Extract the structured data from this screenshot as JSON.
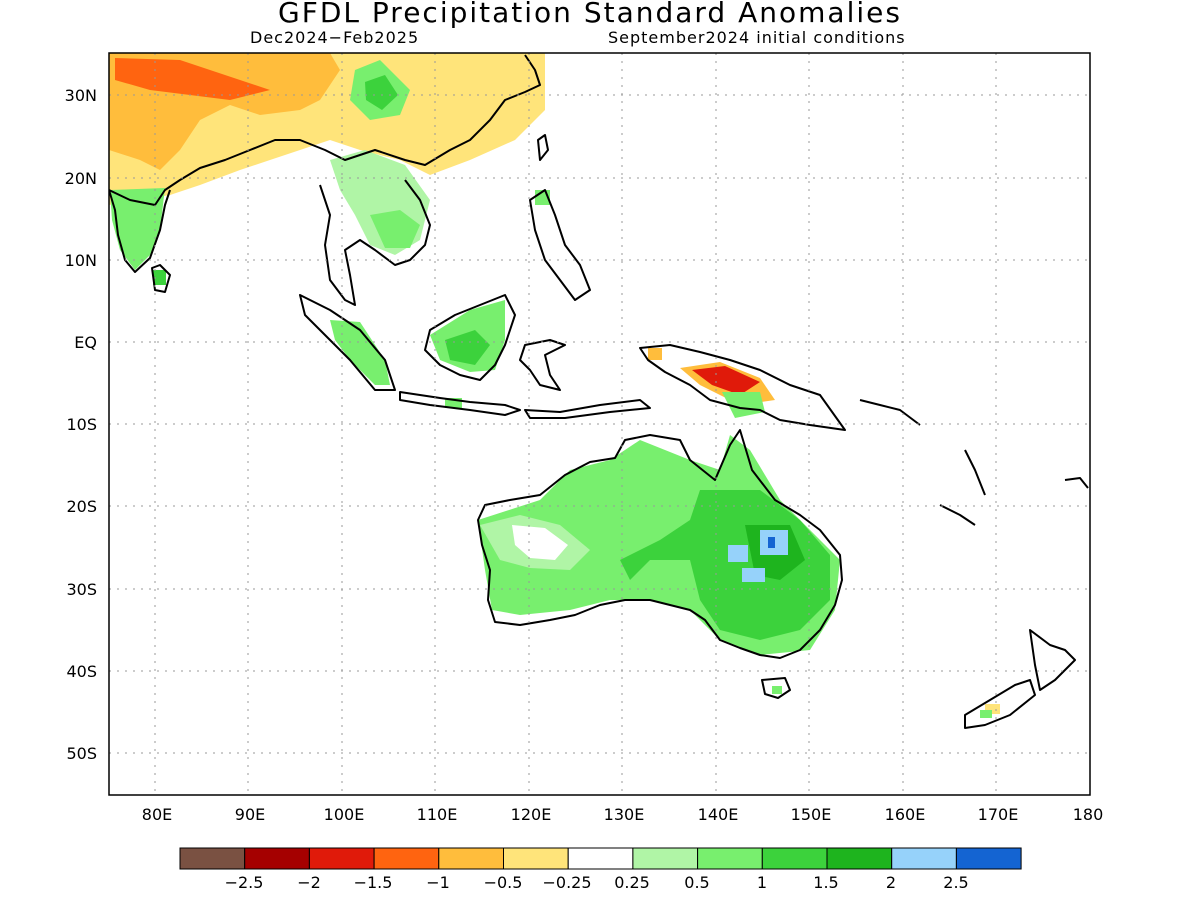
{
  "header": {
    "title": "GFDL Precipitation Standard Anomalies",
    "period": "Dec2024−Feb2025",
    "init": "September2024 initial conditions"
  },
  "axes": {
    "lat_labels": [
      "30N",
      "20N",
      "10N",
      "EQ",
      "10S",
      "20S",
      "30S",
      "40S",
      "50S"
    ],
    "lon_labels": [
      "80E",
      "90E",
      "100E",
      "110E",
      "120E",
      "130E",
      "140E",
      "150E",
      "160E",
      "170E",
      "180"
    ]
  },
  "colorbar": {
    "labels": [
      "−2.5",
      "−2",
      "−1.5",
      "−1",
      "−0.5",
      "−0.25",
      "0.25",
      "0.5",
      "1",
      "1.5",
      "2",
      "2.5"
    ],
    "colors": [
      "#7a5142",
      "#a50000",
      "#e01a0a",
      "#ff6410",
      "#ffbd3c",
      "#ffe47a",
      "#ffffff",
      "#b0f5a6",
      "#78ef6e",
      "#3cd23c",
      "#1eb41e",
      "#96d2fa",
      "#1464d2"
    ]
  }
}
